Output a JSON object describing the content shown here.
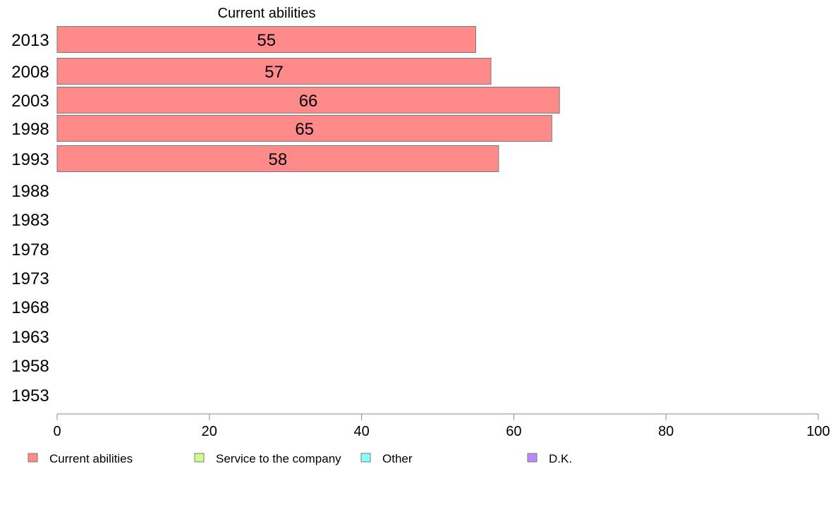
{
  "chart_data": {
    "type": "bar",
    "orientation": "horizontal",
    "categories": [
      "2013",
      "2008",
      "2003",
      "1998",
      "1993",
      "1988",
      "1983",
      "1978",
      "1973",
      "1968",
      "1963",
      "1958",
      "1953"
    ],
    "series": [
      {
        "name": "Current abilities",
        "color": "#ff8a8a",
        "values": [
          55,
          57,
          66,
          65,
          58,
          null,
          null,
          null,
          null,
          null,
          null,
          null,
          null
        ]
      }
    ],
    "bar_labels": [
      "55",
      "57",
      "66",
      "65",
      "58",
      "",
      "",
      "",
      "",
      "",
      "",
      "",
      ""
    ],
    "series_title": "Current abilities",
    "xlim": [
      0,
      100
    ],
    "xticks": [
      0,
      20,
      40,
      60,
      80,
      100
    ],
    "grid": false,
    "legend_position": "bottom",
    "legend": [
      {
        "label": "Current abilities",
        "color": "#ff8a8a"
      },
      {
        "label": "Service to the company",
        "color": "#ccff88"
      },
      {
        "label": "Other",
        "color": "#88ffff"
      },
      {
        "label": "D.K.",
        "color": "#bb88ff"
      }
    ]
  }
}
